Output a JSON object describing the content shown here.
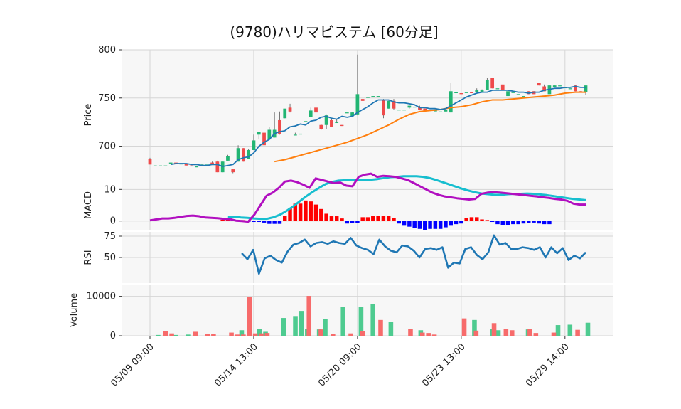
{
  "chart_data": {
    "type": "candlestick",
    "title": "(9780)ハリマビステム [60分足]",
    "colors": {
      "up": "#22b573",
      "down": "#ef4b4b",
      "ma_short": "#1f77b4",
      "ma_long": "#ff7f0e",
      "macd": "#b10fc0",
      "signal": "#17becf",
      "hist_pos": "#ff0000",
      "hist_neg": "#0000ff",
      "rsi": "#1f77b4",
      "vol_up": "#4ecb90",
      "vol_down": "#f76b6b"
    },
    "x_tick_labels": [
      "05/09 09:00",
      "05/14 13:00",
      "05/20 09:00",
      "05/23 13:00",
      "05/29 14:00"
    ],
    "x_tick_index": [
      0,
      20,
      40,
      60,
      80
    ],
    "panels": {
      "price": {
        "ylabel": "Price",
        "yticks": [
          700,
          750,
          800
        ],
        "ylim": [
          665,
          800
        ]
      },
      "macd": {
        "ylabel": "MACD",
        "yticks": [
          0,
          10
        ],
        "ylim": [
          -3,
          13
        ]
      },
      "rsi": {
        "ylabel": "RSI",
        "yticks": [
          50,
          75
        ],
        "ylim": [
          20,
          80
        ]
      },
      "volume": {
        "ylabel": "Volume",
        "yticks": [
          0,
          10000
        ],
        "ylim": [
          0,
          13000
        ]
      }
    },
    "candles": [
      [
        687,
        681,
        688,
        681
      ],
      [
        680,
        680,
        680,
        680
      ],
      [
        680,
        680,
        680,
        680
      ],
      [
        680,
        680,
        680,
        680
      ],
      [
        682,
        683,
        683,
        682
      ],
      [
        683,
        682,
        683,
        682
      ],
      [
        682,
        682,
        682,
        682
      ],
      [
        682,
        680,
        682,
        680
      ],
      [
        680,
        679,
        680,
        679
      ],
      [
        679,
        679,
        679,
        679
      ],
      [
        680,
        681,
        681,
        680
      ],
      [
        681,
        681,
        681,
        681
      ],
      [
        683,
        682,
        684,
        682
      ],
      [
        684,
        673,
        685,
        673
      ],
      [
        673,
        684,
        684,
        673
      ],
      [
        685,
        690,
        691,
        685
      ],
      [
        676,
        673,
        676,
        672
      ],
      [
        684,
        698,
        701,
        684
      ],
      [
        698,
        684,
        698,
        684
      ],
      [
        687,
        696,
        697,
        687
      ],
      [
        696,
        706,
        712,
        696
      ],
      [
        712,
        715,
        715,
        707
      ],
      [
        714,
        701,
        716,
        700
      ],
      [
        707,
        717,
        720,
        707
      ],
      [
        709,
        717,
        735,
        709
      ],
      [
        727,
        713,
        736,
        712
      ],
      [
        729,
        739,
        734,
        729
      ],
      [
        740,
        736,
        744,
        735
      ],
      [
        712,
        712,
        714,
        712
      ],
      [
        713,
        713,
        713,
        713
      ],
      [
        726,
        726,
        726,
        726
      ],
      [
        730,
        737,
        740,
        730
      ],
      [
        740,
        735,
        741,
        735
      ],
      [
        722,
        718,
        723,
        717
      ],
      [
        722,
        732,
        733,
        718
      ],
      [
        727,
        720,
        729,
        720
      ],
      [
        724,
        725,
        728,
        724
      ],
      [
        722,
        721,
        722,
        721
      ],
      [
        735,
        735,
        735,
        735
      ],
      [
        731,
        735,
        735,
        731
      ],
      [
        733,
        754,
        795,
        732
      ],
      [
        749,
        747,
        749,
        747
      ],
      [
        751,
        751,
        751,
        751
      ],
      [
        752,
        752,
        752,
        752
      ],
      [
        752,
        752,
        752,
        752
      ],
      [
        748,
        732,
        749,
        729
      ],
      [
        739,
        747,
        747,
        739
      ],
      [
        747,
        739,
        749,
        738
      ],
      [
        738,
        738,
        738,
        738
      ],
      [
        738,
        738,
        738,
        738
      ],
      [
        740,
        742,
        742,
        739
      ],
      [
        741,
        741,
        741,
        741
      ],
      [
        741,
        738,
        742,
        738
      ],
      [
        739,
        737,
        739,
        737
      ],
      [
        738,
        738,
        738,
        738
      ],
      [
        737,
        737,
        737,
        737
      ],
      [
        736,
        736,
        736,
        736
      ],
      [
        736,
        738,
        738,
        736
      ],
      [
        735,
        757,
        766,
        735
      ],
      [
        755,
        756,
        757,
        755
      ],
      [
        755,
        754,
        755,
        754
      ],
      [
        756,
        756,
        756,
        756
      ],
      [
        756,
        755,
        756,
        755
      ],
      [
        756,
        758,
        760,
        756
      ],
      [
        756,
        758,
        759,
        756
      ],
      [
        758,
        769,
        771,
        758
      ],
      [
        771,
        760,
        771,
        760
      ],
      [
        760,
        760,
        760,
        760
      ],
      [
        764,
        758,
        764,
        758
      ],
      [
        752,
        757,
        760,
        752
      ],
      [
        756,
        756,
        756,
        756
      ],
      [
        754,
        754,
        754,
        754
      ],
      [
        752,
        752,
        752,
        752
      ],
      [
        757,
        754,
        757,
        754
      ],
      [
        757,
        754,
        757,
        754
      ],
      [
        766,
        763,
        766,
        763
      ],
      [
        762,
        757,
        764,
        757
      ],
      [
        754,
        763,
        763,
        754
      ],
      [
        761,
        763,
        763,
        761
      ],
      [
        763,
        763,
        763,
        763
      ],
      [
        761,
        761,
        761,
        761
      ],
      [
        760,
        760,
        760,
        760
      ],
      [
        763,
        757,
        763,
        757
      ],
      [
        757,
        756,
        757,
        756
      ],
      [
        756,
        763,
        763,
        753
      ]
    ],
    "ma_short": [
      null,
      null,
      null,
      null,
      681,
      682,
      682,
      682,
      681,
      681,
      680,
      680,
      681,
      681,
      679,
      680,
      681,
      686,
      688,
      689,
      693,
      700,
      704,
      707,
      713,
      715,
      716,
      720,
      721,
      723,
      722,
      726,
      727,
      730,
      731,
      729,
      728,
      731,
      730,
      731,
      735,
      738,
      741,
      745,
      748,
      748,
      748,
      746,
      745,
      745,
      744,
      743,
      740,
      740,
      739,
      739,
      738,
      739,
      742,
      745,
      748,
      751,
      753,
      755,
      756,
      756,
      758,
      758,
      758,
      758,
      757,
      756,
      756,
      755,
      756,
      756,
      758,
      759,
      760,
      760,
      761,
      761,
      762,
      761,
      761
    ],
    "ma_long": [
      null,
      null,
      null,
      null,
      null,
      null,
      null,
      null,
      null,
      null,
      null,
      null,
      null,
      null,
      null,
      null,
      null,
      null,
      null,
      null,
      null,
      null,
      null,
      null,
      null,
      null,
      null,
      null,
      null,
      null,
      null,
      null,
      null,
      null,
      null,
      null,
      null,
      null,
      null,
      null,
      null,
      null,
      null,
      null,
      null,
      null,
      null,
      null,
      null,
      null,
      null,
      null,
      null,
      null,
      null,
      null,
      null,
      null,
      null,
      null,
      null,
      null,
      null,
      null,
      null,
      null,
      null,
      null,
      null,
      null,
      null,
      null,
      null,
      null,
      null,
      null,
      null,
      null,
      null,
      null,
      null,
      null,
      null,
      null,
      null
    ],
    "ma_long_points": [
      [
        24,
        684
      ],
      [
        26,
        686
      ],
      [
        28,
        689
      ],
      [
        30,
        692
      ],
      [
        32,
        695
      ],
      [
        34,
        698
      ],
      [
        36,
        701
      ],
      [
        38,
        704
      ],
      [
        40,
        708
      ],
      [
        42,
        712
      ],
      [
        44,
        717
      ],
      [
        46,
        722
      ],
      [
        48,
        728
      ],
      [
        50,
        733
      ],
      [
        52,
        736
      ],
      [
        54,
        737
      ],
      [
        56,
        738
      ],
      [
        58,
        740
      ],
      [
        60,
        741
      ],
      [
        62,
        743
      ],
      [
        64,
        746
      ],
      [
        66,
        748
      ],
      [
        68,
        748
      ],
      [
        70,
        749
      ],
      [
        72,
        750
      ],
      [
        74,
        751
      ],
      [
        76,
        752
      ],
      [
        78,
        753
      ],
      [
        80,
        755
      ],
      [
        82,
        756
      ],
      [
        84,
        756
      ]
    ],
    "macd": [
      0.2,
      0.5,
      0.8,
      0.8,
      1,
      1.3,
      1.6,
      1.7,
      1.5,
      1.1,
      1,
      0.9,
      0.7,
      0.6,
      0.1,
      0,
      -0.2,
      2,
      5,
      8,
      9,
      10.5,
      12.5,
      12.8,
      12.3,
      11.5,
      10.5,
      13.5,
      13,
      12.5,
      12,
      12.2,
      11.2,
      11,
      14,
      14.7,
      15,
      14,
      14.3,
      14.2,
      14,
      13.5,
      13,
      12,
      11,
      10,
      9,
      8.3,
      7.8,
      7.5,
      7.2,
      7,
      6.8,
      7,
      8.6,
      9,
      9.1,
      9,
      8.8,
      8.6,
      8.4,
      8.2,
      8,
      7.8,
      7.5,
      7.3,
      7.0,
      6.8,
      6.4,
      5.5,
      5.2,
      5.2
    ],
    "signal": [
      null,
      null,
      null,
      null,
      null,
      null,
      null,
      null,
      null,
      null,
      null,
      null,
      1.4,
      1.3,
      1.1,
      1,
      0.8,
      0.7,
      0.7,
      1.2,
      2,
      3.2,
      4.6,
      6.2,
      7.8,
      9.2,
      10.5,
      11.7,
      12.4,
      12.8,
      12.9,
      13,
      13,
      13,
      13.1,
      13.3,
      13.6,
      13.9,
      14,
      14.2,
      14.2,
      14.2,
      14,
      13.6,
      13,
      12.3,
      11.6,
      10.9,
      10.2,
      9.6,
      9.1,
      8.7,
      8.5,
      8.3,
      8.3,
      8.5,
      8.6,
      8.6,
      8.7,
      8.6,
      8.4,
      8.2,
      7.9,
      7.6,
      7.3,
      7,
      6.8,
      6.6
    ],
    "macd_hist": [
      0,
      0,
      0,
      0,
      0,
      0,
      0.4,
      0.4,
      0.4,
      0.3,
      0.3,
      -0.3,
      -0.3,
      -0.3,
      -0.5,
      -0.9,
      -0.9,
      -0.9,
      1.6,
      4,
      5.5,
      5.5,
      6.5,
      6.2,
      5.2,
      3.8,
      2.3,
      1.5,
      1.5,
      0.8,
      -0.8,
      -0.6,
      -0.6,
      1.2,
      1.2,
      1.6,
      1.6,
      1.6,
      1.6,
      0.9,
      -0.8,
      -1.5,
      -1.8,
      -2.3,
      -2.5,
      -2.8,
      -2.5,
      -2.5,
      -2.5,
      -2,
      -1.5,
      -1,
      -0.8,
      1,
      1.2,
      1.2,
      0.5,
      0.3,
      -0.3,
      -1.0,
      -1.3,
      -1.2,
      -1.0,
      -1.0,
      -0.8,
      -0.6,
      -0.5,
      -0.8,
      -1.0,
      -1.0
    ],
    "rsi": [
      null,
      null,
      null,
      null,
      null,
      null,
      null,
      null,
      null,
      null,
      null,
      null,
      null,
      null,
      null,
      null,
      55,
      48,
      59,
      31,
      49,
      52,
      47,
      44,
      57,
      65,
      67,
      71,
      63,
      67,
      68,
      66,
      69,
      67,
      66,
      73,
      64,
      61,
      59,
      54,
      71,
      63,
      58,
      56,
      64,
      63,
      58,
      50,
      60,
      61,
      59,
      62,
      38,
      44,
      43,
      60,
      62,
      53,
      48,
      56,
      76,
      65,
      67,
      60,
      60,
      62,
      61,
      59,
      62,
      50,
      62,
      55,
      61,
      47,
      52,
      49,
      56
    ],
    "volume_up": [
      0,
      200,
      0,
      0,
      200,
      0,
      300,
      0,
      0,
      0,
      0,
      0,
      0,
      0,
      0,
      1400,
      0,
      0,
      1800,
      1000,
      0,
      0,
      4500,
      0,
      5000,
      6300,
      1800,
      0,
      1600,
      4300,
      0,
      0,
      7400,
      0,
      0,
      7400,
      0,
      8000,
      0,
      0,
      3600,
      0,
      0,
      0,
      0,
      1400,
      0,
      0,
      0,
      0,
      0,
      0,
      0,
      0,
      4000,
      0,
      0,
      1700,
      1400,
      0,
      0,
      0,
      0,
      1600,
      0,
      0,
      0,
      0,
      2700,
      0,
      2800,
      0,
      0,
      3300
    ],
    "volume_down": [
      0,
      0,
      0,
      1200,
      600,
      0,
      0,
      0,
      1000,
      0,
      400,
      400,
      0,
      0,
      800,
      300,
      300,
      9800,
      600,
      600,
      700,
      0,
      0,
      0,
      0,
      0,
      0,
      10100,
      0,
      1600,
      0,
      400,
      0,
      0,
      600,
      0,
      1200,
      0,
      0,
      4000,
      0,
      0,
      0,
      0,
      1700,
      0,
      800,
      700,
      300,
      0,
      0,
      0,
      0,
      4400,
      0,
      1300,
      0,
      0,
      3200,
      0,
      1700,
      1400,
      0,
      0,
      1700,
      700,
      0,
      0,
      800,
      0,
      0,
      0,
      1500,
      0
    ]
  }
}
